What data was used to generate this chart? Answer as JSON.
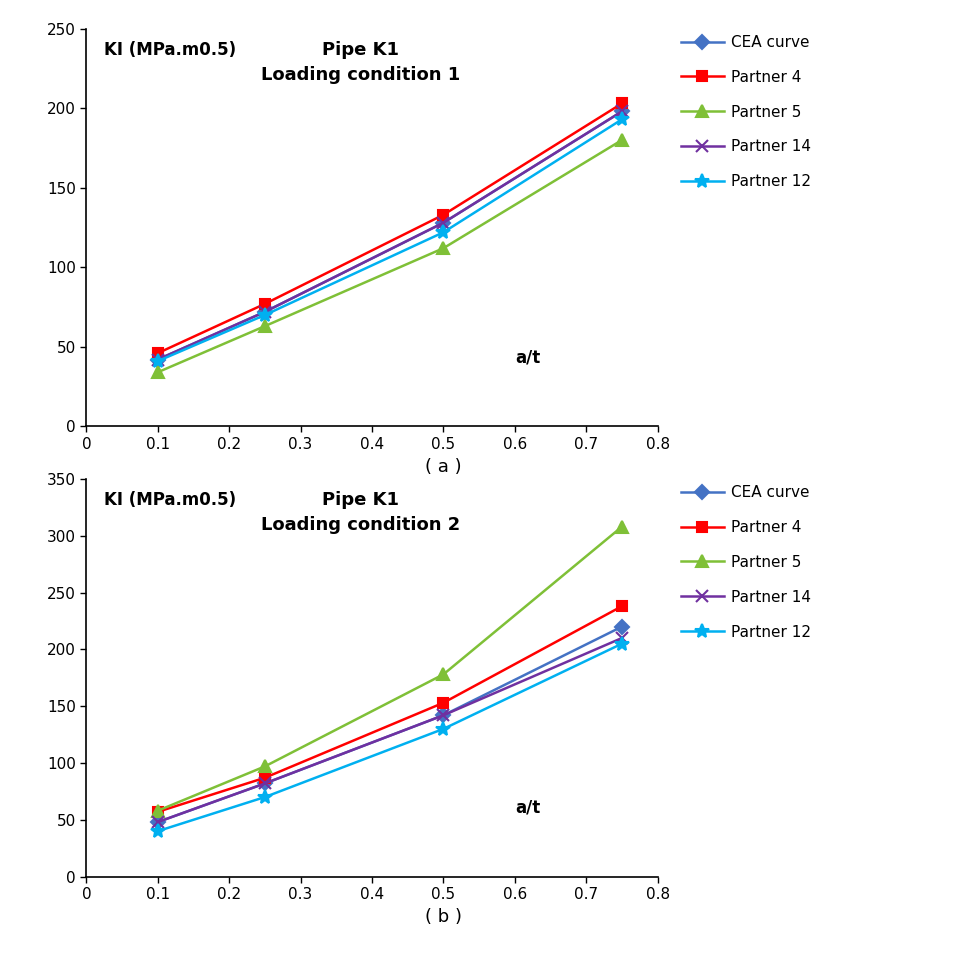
{
  "x": [
    0.1,
    0.25,
    0.5,
    0.75
  ],
  "chart_a": {
    "title_line1": "Pipe K1",
    "title_line2": "Loading condition 1",
    "ylabel": "KI (MPa.m0.5)",
    "xlabel": "a/t",
    "ylim": [
      0,
      250
    ],
    "yticks": [
      0,
      50,
      100,
      150,
      200,
      250
    ],
    "xlim": [
      0,
      0.8
    ],
    "xticks": [
      0,
      0.1,
      0.2,
      0.3,
      0.4,
      0.5,
      0.6,
      0.7,
      0.8
    ],
    "series": {
      "CEA curve": {
        "color": "#4472C4",
        "marker": "D",
        "values": [
          42,
          72,
          128,
          198
        ]
      },
      "Partner 4": {
        "color": "#FF0000",
        "marker": "s",
        "values": [
          46,
          77,
          133,
          203
        ]
      },
      "Partner 5": {
        "color": "#7FC037",
        "marker": "^",
        "values": [
          34,
          63,
          112,
          180
        ]
      },
      "Partner 14": {
        "color": "#7030A0",
        "marker": "x",
        "values": [
          42,
          72,
          128,
          198
        ]
      },
      "Partner 12": {
        "color": "#00B0F0",
        "marker": "*",
        "values": [
          41,
          70,
          122,
          193
        ]
      }
    }
  },
  "chart_b": {
    "title_line1": "Pipe K1",
    "title_line2": "Loading condition 2",
    "ylabel": "KI (MPa.m0.5)",
    "xlabel": "a/t",
    "ylim": [
      0,
      350
    ],
    "yticks": [
      0,
      50,
      100,
      150,
      200,
      250,
      300,
      350
    ],
    "xlim": [
      0,
      0.8
    ],
    "xticks": [
      0,
      0.1,
      0.2,
      0.3,
      0.4,
      0.5,
      0.6,
      0.7,
      0.8
    ],
    "series": {
      "CEA curve": {
        "color": "#4472C4",
        "marker": "D",
        "values": [
          48,
          82,
          142,
          220
        ]
      },
      "Partner 4": {
        "color": "#FF0000",
        "marker": "s",
        "values": [
          57,
          87,
          153,
          238
        ]
      },
      "Partner 5": {
        "color": "#7FC037",
        "marker": "^",
        "values": [
          58,
          97,
          178,
          308
        ]
      },
      "Partner 14": {
        "color": "#7030A0",
        "marker": "x",
        "values": [
          48,
          82,
          142,
          210
        ]
      },
      "Partner 12": {
        "color": "#00B0F0",
        "marker": "*",
        "values": [
          40,
          70,
          130,
          205
        ]
      }
    }
  },
  "legend_order": [
    "CEA curve",
    "Partner 4",
    "Partner 5",
    "Partner 14",
    "Partner 12"
  ],
  "background_color": "#FFFFFF",
  "subfig_label_a": "( a )",
  "subfig_label_b": "( b )"
}
